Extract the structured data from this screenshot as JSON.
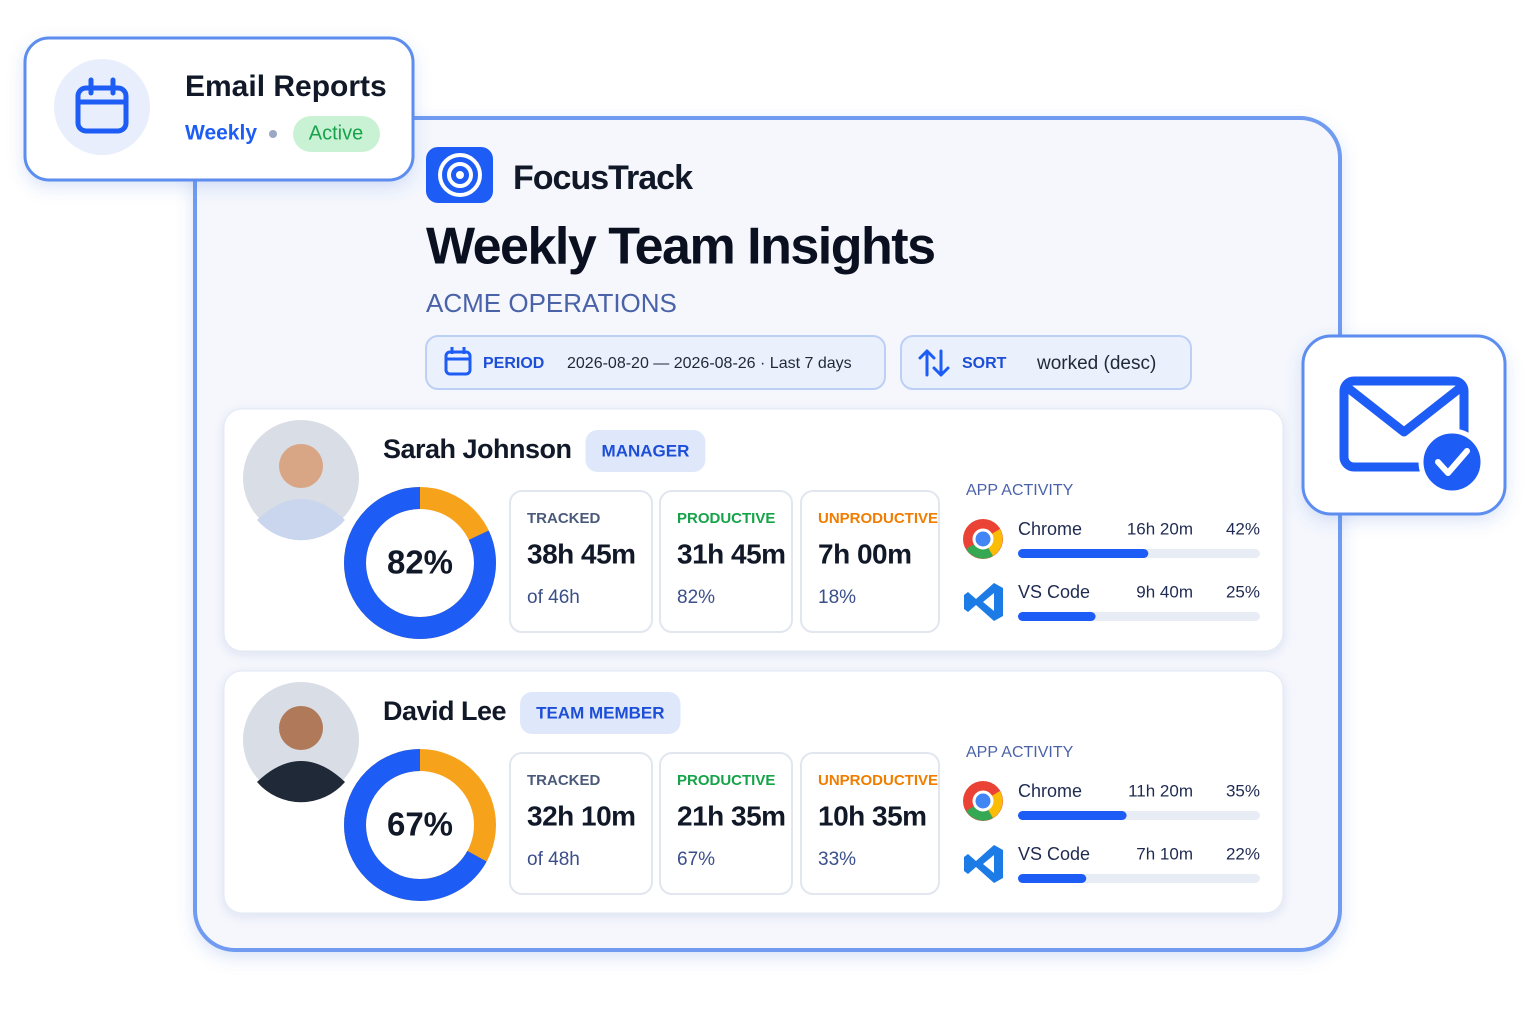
{
  "email_reports": {
    "title": "Email Reports",
    "frequency": "Weekly",
    "status": "Active"
  },
  "header": {
    "brand": "FocusTrack",
    "title": "Weekly Team Insights",
    "subtitle": "ACME OPERATIONS"
  },
  "filters": {
    "period_label": "PERIOD",
    "period_value": "2026-08-20 — 2026-08-26 · Last 7 days",
    "sort_label": "SORT",
    "sort_value": "worked (desc)"
  },
  "members": [
    {
      "name": "Sarah Johnson",
      "role": "MANAGER",
      "productivity": {
        "value": 82,
        "label": "82%"
      },
      "stats": [
        {
          "label": "TRACKED",
          "value": "38h 45m",
          "sub": "of 46h"
        },
        {
          "label": "PRODUCTIVE",
          "value": "31h 45m",
          "sub": "82%"
        },
        {
          "label": "UNPRODUCTIVE",
          "value": "7h 00m",
          "sub": "18%"
        }
      ],
      "app_activity_label": "APP ACTIVITY",
      "apps": [
        {
          "name": "Chrome",
          "time": "16h 20m",
          "share": {
            "value": 42,
            "label": "42%"
          }
        },
        {
          "name": "VS Code",
          "time": "9h 40m",
          "share": {
            "value": 25,
            "label": "25%"
          }
        }
      ]
    },
    {
      "name": "David Lee",
      "role": "TEAM MEMBER",
      "productivity": {
        "value": 67,
        "label": "67%"
      },
      "stats": [
        {
          "label": "TRACKED",
          "value": "32h 10m",
          "sub": "of 48h"
        },
        {
          "label": "PRODUCTIVE",
          "value": "21h 35m",
          "sub": "67%"
        },
        {
          "label": "UNPRODUCTIVE",
          "value": "10h 35m",
          "sub": "33%"
        }
      ],
      "app_activity_label": "APP ACTIVITY",
      "apps": [
        {
          "name": "Chrome",
          "time": "11h 20m",
          "share": {
            "value": 35,
            "label": "35%"
          }
        },
        {
          "name": "VS Code",
          "time": "7h 10m",
          "share": {
            "value": 22,
            "label": "22%"
          }
        }
      ]
    }
  ]
}
